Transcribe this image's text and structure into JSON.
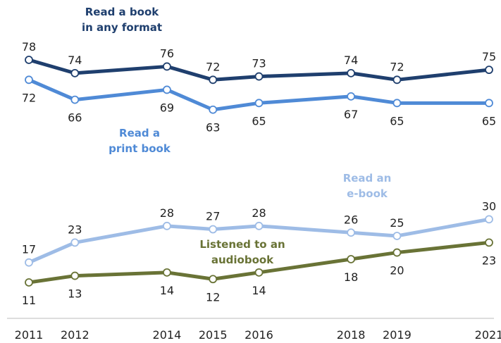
{
  "chart_data": {
    "type": "line",
    "x": [
      2011,
      2012,
      2014,
      2015,
      2016,
      2018,
      2019,
      2021
    ],
    "xlim": [
      2011,
      2021
    ],
    "ylim": [
      0,
      100
    ],
    "grid": false,
    "legend": "inline labels",
    "series": [
      {
        "name": "Read a book in any format",
        "name_lines": [
          "Read a book",
          "in any format"
        ],
        "values": [
          78,
          74,
          76,
          72,
          73,
          74,
          72,
          75
        ],
        "color": "#1f3f6e"
      },
      {
        "name": "Read a print book",
        "name_lines": [
          "Read a",
          "print book"
        ],
        "values": [
          72,
          66,
          69,
          63,
          65,
          67,
          65,
          65
        ],
        "color": "#4f8ad6"
      },
      {
        "name": "Read an e-book",
        "name_lines": [
          "Read an",
          "e-book"
        ],
        "values": [
          17,
          23,
          28,
          27,
          28,
          26,
          25,
          30
        ],
        "color": "#9ebce6"
      },
      {
        "name": "Listened to an audiobook",
        "name_lines": [
          "Listened to an",
          "audiobook"
        ],
        "values": [
          11,
          13,
          14,
          12,
          14,
          18,
          20,
          23
        ],
        "color": "#697336"
      }
    ]
  }
}
